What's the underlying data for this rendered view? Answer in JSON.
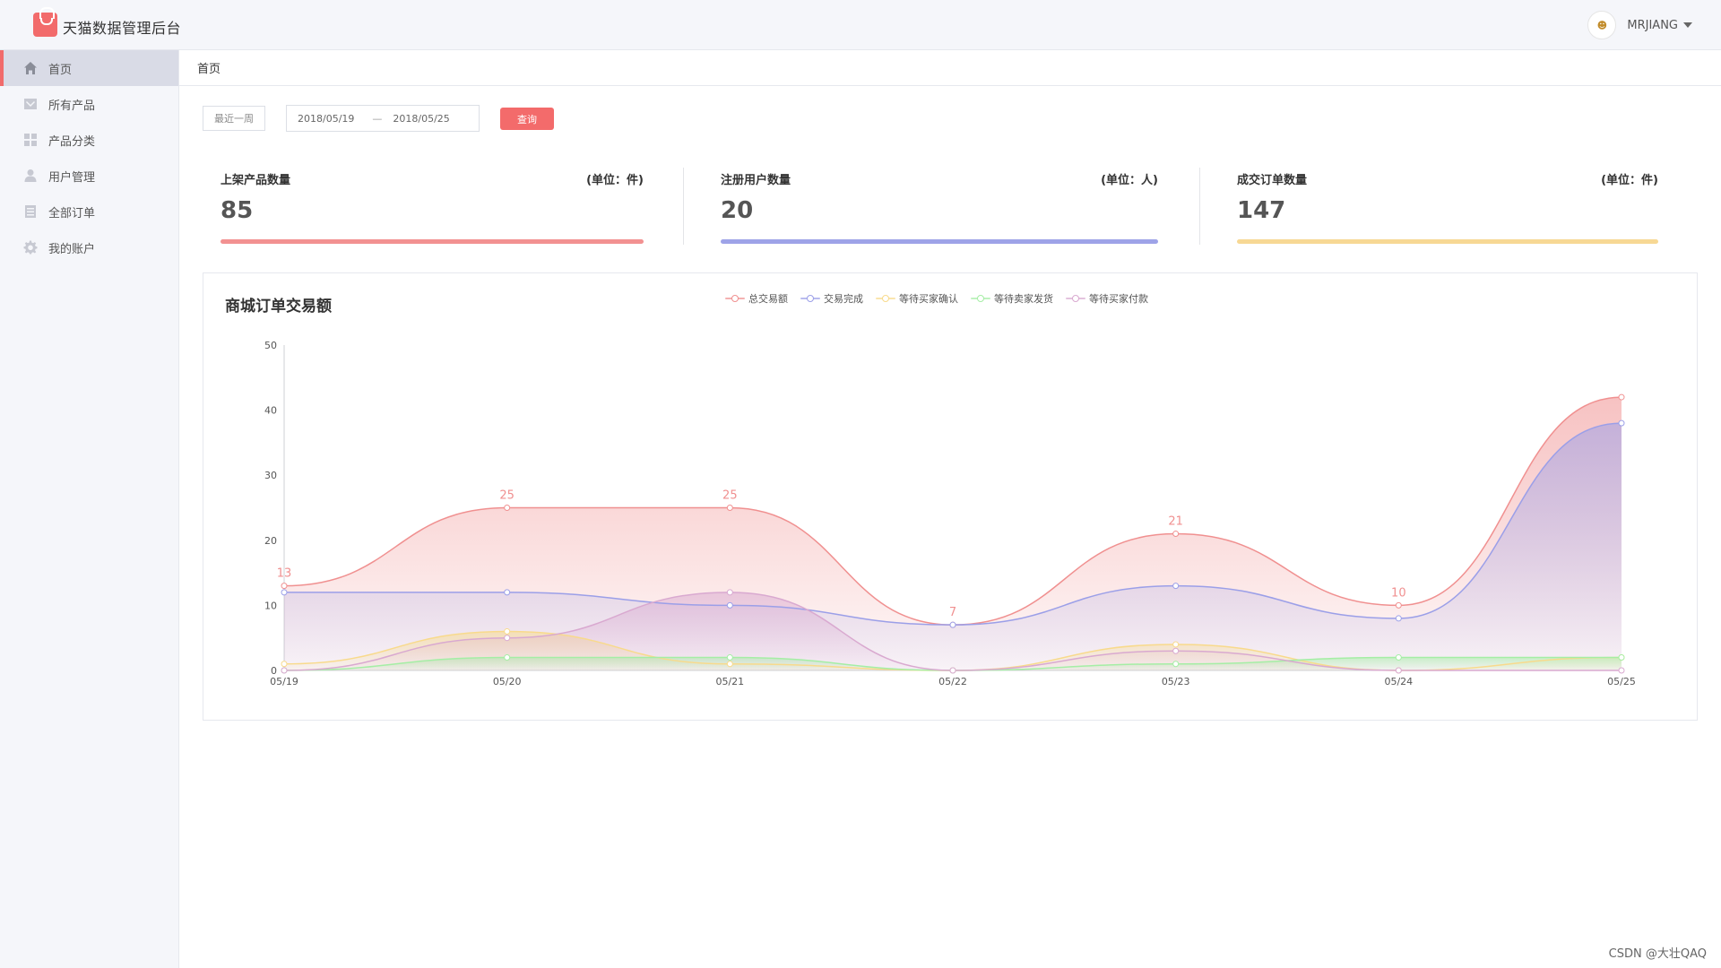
{
  "app": {
    "title": "天猫数据管理后台"
  },
  "user": {
    "name": "MRJIANG",
    "avatar_text": "☻"
  },
  "sidebar": {
    "items": [
      {
        "label": "首页",
        "icon": "home-icon",
        "active": true
      },
      {
        "label": "所有产品",
        "icon": "products-icon",
        "active": false
      },
      {
        "label": "产品分类",
        "icon": "category-icon",
        "active": false
      },
      {
        "label": "用户管理",
        "icon": "user-icon",
        "active": false
      },
      {
        "label": "全部订单",
        "icon": "orders-icon",
        "active": false
      },
      {
        "label": "我的账户",
        "icon": "gear-icon",
        "active": false
      }
    ]
  },
  "breadcrumb": {
    "current": "首页"
  },
  "filter": {
    "recent_label": "最近一周",
    "start_date": "2018/05/19",
    "separator": "—",
    "end_date": "2018/05/25",
    "query_label": "查询"
  },
  "stats": [
    {
      "title": "上架产品数量",
      "unit": "(单位：件)",
      "value": "85",
      "color": "#f29191"
    },
    {
      "title": "注册用户数量",
      "unit": "(单位：人)",
      "value": "20",
      "color": "#9ea3e8"
    },
    {
      "title": "成交订单数量",
      "unit": "(单位：件)",
      "value": "147",
      "color": "#f7d894"
    }
  ],
  "chart_data": {
    "type": "area",
    "title": "商城订单交易额",
    "categories": [
      "05/19",
      "05/20",
      "05/21",
      "05/22",
      "05/23",
      "05/24",
      "05/25"
    ],
    "ylim": [
      0,
      50
    ],
    "yticks": [
      0,
      10,
      20,
      30,
      40,
      50
    ],
    "legend_position": "top-center",
    "series": [
      {
        "name": "总交易额",
        "values": [
          13,
          25,
          25,
          7,
          21,
          10,
          42
        ],
        "color": "#f09090",
        "show_labels": true
      },
      {
        "name": "交易完成",
        "values": [
          12,
          12,
          10,
          7,
          13,
          8,
          38
        ],
        "color": "#9b9fe8",
        "show_labels": false
      },
      {
        "name": "等待买家确认",
        "values": [
          1,
          6,
          1,
          0,
          4,
          0,
          2
        ],
        "color": "#f8da8c",
        "show_labels": false
      },
      {
        "name": "等待卖家发货",
        "values": [
          0,
          2,
          2,
          0,
          1,
          2,
          2
        ],
        "color": "#a5eea5",
        "show_labels": false
      },
      {
        "name": "等待买家付款",
        "values": [
          0,
          5,
          12,
          0,
          3,
          0,
          0
        ],
        "color": "#d9a9d0",
        "show_labels": false
      }
    ]
  },
  "watermark": "CSDN @大壮QAQ"
}
